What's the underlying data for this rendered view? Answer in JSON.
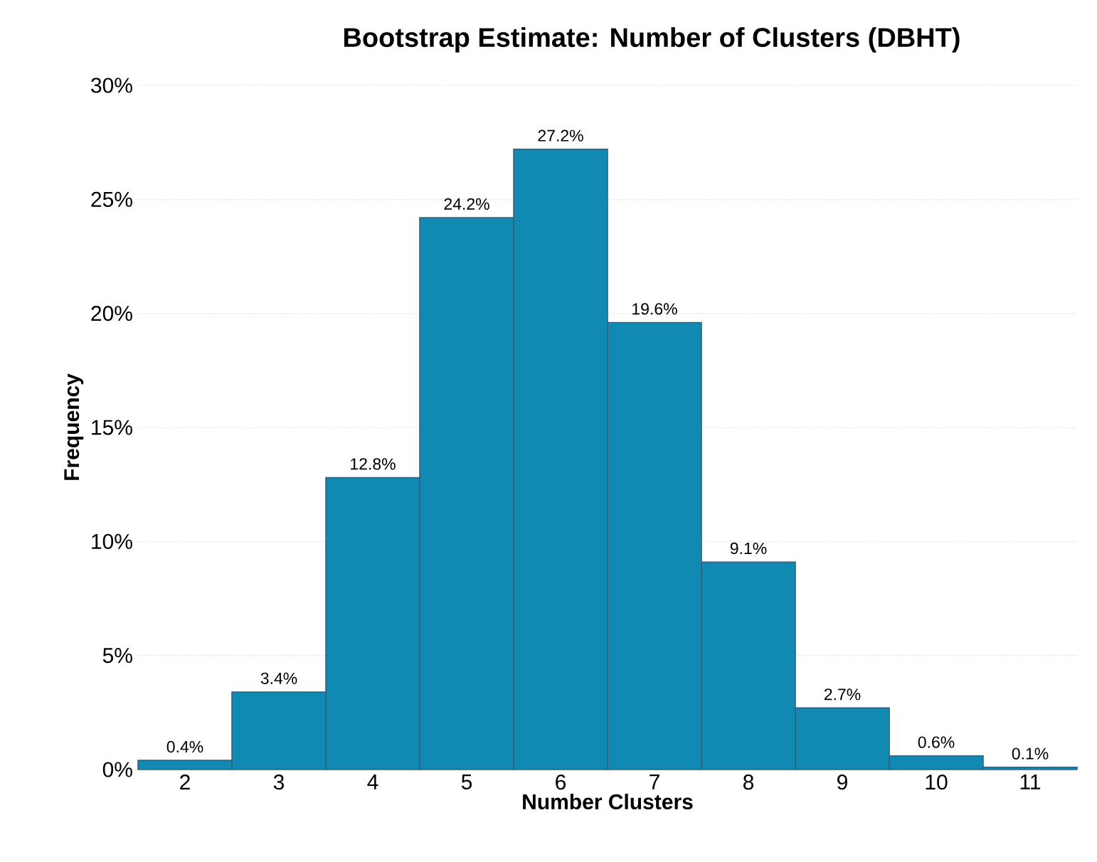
{
  "chart_data": {
    "type": "bar",
    "title": "Bootstrap Estimate: Number of Clusters (DBHT)",
    "xlabel": "Number Clusters",
    "ylabel": "Frequency",
    "categories": [
      "2",
      "3",
      "4",
      "5",
      "6",
      "7",
      "8",
      "9",
      "10",
      "11"
    ],
    "values": [
      0.4,
      3.4,
      12.8,
      24.2,
      27.2,
      19.6,
      9.1,
      2.7,
      0.6,
      0.1
    ],
    "value_labels": [
      "0.4%",
      "3.4%",
      "12.8%",
      "24.2%",
      "27.2%",
      "19.6%",
      "9.1%",
      "2.7%",
      "0.6%",
      "0.1%"
    ],
    "color": "#1089b3",
    "ylim": [
      0,
      30
    ],
    "yticks": [
      {
        "value": 0,
        "label": "0%"
      },
      {
        "value": 5,
        "label": "5%"
      },
      {
        "value": 10,
        "label": "10%"
      },
      {
        "value": 15,
        "label": "15%"
      },
      {
        "value": 20,
        "label": "20%"
      },
      {
        "value": 25,
        "label": "25%"
      },
      {
        "value": 30,
        "label": "30%"
      }
    ],
    "grid": "y"
  }
}
